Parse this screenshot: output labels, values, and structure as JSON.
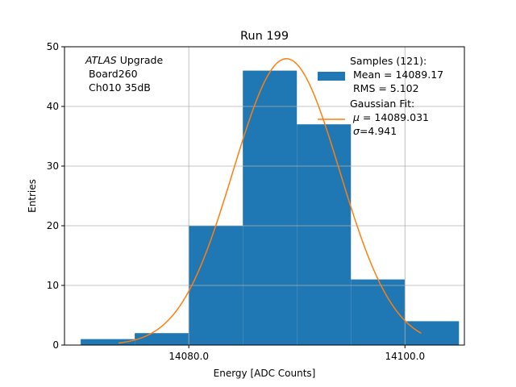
{
  "chart_data": {
    "type": "bar",
    "title": "Run 199",
    "xlabel": "Energy [ADC Counts]",
    "ylabel": "Entries",
    "xlim": [
      14068.5,
      14105.5
    ],
    "ylim": [
      0,
      50
    ],
    "xticks": [
      14080,
      14100
    ],
    "xtick_labels": [
      "14080.0",
      "14100.0"
    ],
    "yticks": [
      0,
      10,
      20,
      30,
      40,
      50
    ],
    "ytick_labels": [
      "0",
      "10",
      "20",
      "30",
      "40",
      "50"
    ],
    "grid": true,
    "histogram": {
      "bin_edges": [
        14070,
        14075,
        14080,
        14085,
        14090,
        14095,
        14100,
        14105
      ],
      "counts": [
        1,
        2,
        20,
        46,
        37,
        11,
        4
      ],
      "color": "#1f77b4"
    },
    "fit": {
      "mu": 14089.031,
      "sigma": 4.941,
      "peak": 48,
      "x_range": [
        14073.5,
        14101.5
      ],
      "color": "#ff7f0e"
    },
    "annotation": {
      "italic": "ATLAS",
      "rest": " Upgrade",
      "line2": " Board260",
      "line3": " Ch010 35dB"
    },
    "legend": {
      "position": "top-right",
      "samples_title": "Samples (121):",
      "samples_mean": " Mean = 14089.17",
      "samples_rms": " RMS = 5.102",
      "fit_title": "Gaussian Fit:",
      "fit_mu_symbol": "μ",
      "fit_mu_rest": " = 14089.031",
      "fit_sigma_symbol": "σ",
      "fit_sigma_rest": "=4.941"
    }
  }
}
